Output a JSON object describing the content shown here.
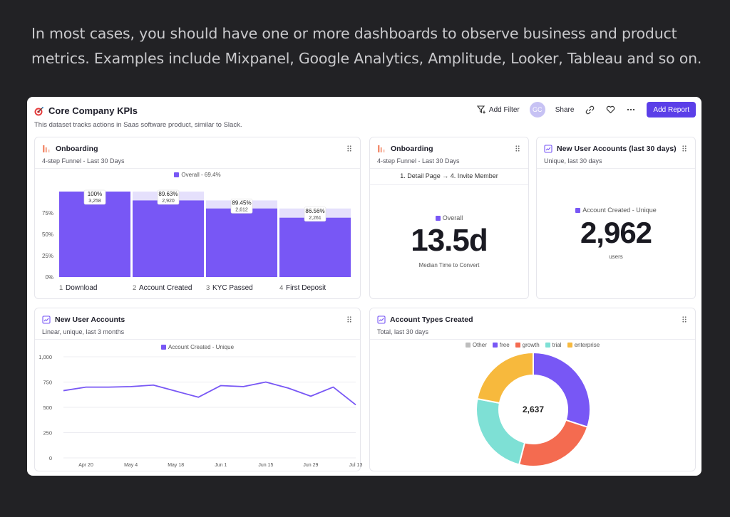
{
  "intro_text": "In most cases, you should have one or more dashboards to observe business and product metrics. Examples include Mixpanel, Google Analytics, Amplitude, Looker, Tableau and so on.",
  "header": {
    "title": "Core Company KPIs",
    "subtitle": "This dataset tracks actions in Saas software product, similar to Slack.",
    "add_filter": "Add Filter",
    "avatar_initials": "GC",
    "share": "Share",
    "add_report": "Add Report"
  },
  "colors": {
    "accent": "#7857f5",
    "button": "#5b3fe8"
  },
  "funnel_card": {
    "title": "Onboarding",
    "subtitle": "4-step Funnel - Last 30 Days",
    "legend": "Overall - 69.4%"
  },
  "time_card": {
    "title": "Onboarding",
    "subtitle": "4-step Funnel - Last 30 Days",
    "steps": "1. Detail Page → 4. Invite Member",
    "legend": "Overall",
    "value": "13.5d",
    "caption": "Median Time to Convert"
  },
  "new_users_card": {
    "title": "New User Accounts (last 30 days)",
    "subtitle": "Unique, last 30 days",
    "legend": "Account Created - Unique",
    "value": "2,962",
    "caption": "users"
  },
  "line_card": {
    "title": "New User Accounts",
    "subtitle": "Linear, unique, last 3 months",
    "legend": "Account Created - Unique"
  },
  "pie_card": {
    "title": "Account Types Created",
    "subtitle": "Total, last 30 days",
    "center": "2,637"
  },
  "chart_data": [
    {
      "type": "bar",
      "categories": [
        "Download",
        "Account Created",
        "KYC Passed",
        "First Deposit"
      ],
      "step_numbers": [
        "1",
        "2",
        "3",
        "4"
      ],
      "values": [
        100,
        89.63,
        89.45,
        86.56
      ],
      "overall_values": [
        100,
        89.63,
        80.2,
        69.4
      ],
      "percent_labels": [
        "100%",
        "89.63%",
        "89.45%",
        "86.56%"
      ],
      "count_labels": [
        "3,258",
        "2,920",
        "2,612",
        "2,261"
      ],
      "yticks": [
        "0%",
        "25%",
        "50%",
        "75%"
      ],
      "ylim": [
        0,
        100
      ],
      "legend": "Overall - 69.4%"
    },
    {
      "type": "line",
      "series": [
        {
          "name": "Account Created - Unique",
          "values": [
            665,
            700,
            700,
            705,
            720,
            660,
            600,
            715,
            705,
            750,
            690,
            610,
            700,
            525
          ]
        }
      ],
      "x": [
        0,
        7,
        14,
        21,
        28,
        35,
        42,
        49,
        56,
        63,
        70,
        77,
        84,
        91
      ],
      "xticks": [
        {
          "label": "Apr 20",
          "x": 7
        },
        {
          "label": "May 4",
          "x": 21
        },
        {
          "label": "May 18",
          "x": 35
        },
        {
          "label": "Jun 1",
          "x": 49
        },
        {
          "label": "Jun 15",
          "x": 63
        },
        {
          "label": "Jun 29",
          "x": 77
        },
        {
          "label": "Jul 13",
          "x": 91
        }
      ],
      "yticks": [
        "0",
        "250",
        "500",
        "750",
        "1,000"
      ],
      "ylim": [
        0,
        1000
      ],
      "xlim": [
        0,
        91
      ]
    },
    {
      "type": "pie",
      "legend": [
        {
          "name": "Other",
          "color": "#bdbdbd"
        },
        {
          "name": "free",
          "color": "#7857f5"
        },
        {
          "name": "growth",
          "color": "#f46b50"
        },
        {
          "name": "trial",
          "color": "#7ee0d5"
        },
        {
          "name": "enterprise",
          "color": "#f7b93d"
        }
      ],
      "slices": [
        {
          "name": "free",
          "value": 30,
          "color": "#7857f5"
        },
        {
          "name": "growth",
          "value": 24,
          "color": "#f46b50"
        },
        {
          "name": "trial",
          "value": 24,
          "color": "#7ee0d5"
        },
        {
          "name": "enterprise",
          "value": 22,
          "color": "#f7b93d"
        }
      ],
      "total": "2,637"
    }
  ]
}
